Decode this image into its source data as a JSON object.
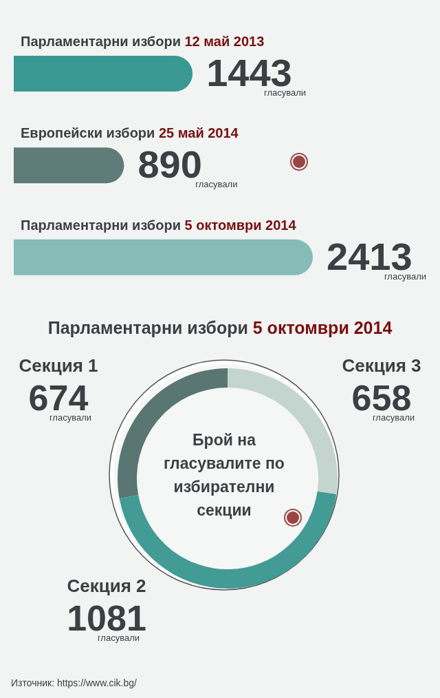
{
  "chart_data": [
    {
      "type": "bar",
      "orientation": "horizontal",
      "categories": [
        "Парламентарни избори 12 май 2013",
        "Европейски избори  25 май 2014",
        "Парламентарни избори 5 октомври 2014"
      ],
      "values": [
        1443,
        890,
        2413
      ],
      "colors": [
        "#3a9893",
        "#5f7c79",
        "#86bcb5"
      ],
      "data_labels": true,
      "annotations": [
        "гласували",
        "гласували",
        "гласували"
      ]
    },
    {
      "type": "donut",
      "title": "Парламентарни избори 5 октомври 2014",
      "categories": [
        "Секция 1",
        "Секция 2",
        "Секция 3"
      ],
      "values": [
        674,
        1081,
        658
      ],
      "colors": [
        "#5a7673",
        "#429b95",
        "#c4d4cf"
      ],
      "data_labels": true,
      "annotations": [
        "Брой на гласувалите по избирателни секции",
        "гласували",
        "гласували",
        "гласували",
        "Източник: https://www.cik.bg/"
      ]
    }
  ]
}
